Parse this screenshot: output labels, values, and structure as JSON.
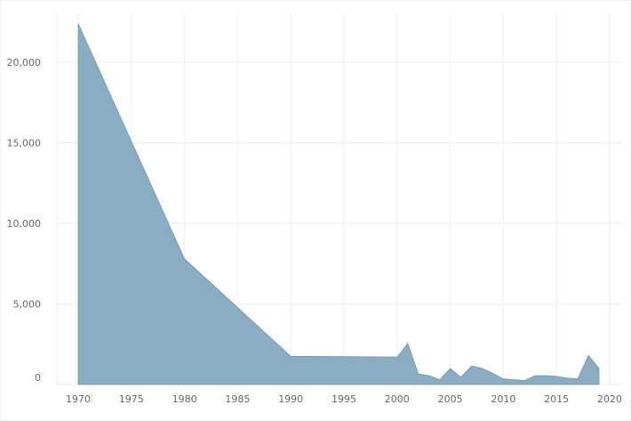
{
  "chart_data": {
    "type": "area",
    "title": "",
    "xlabel": "",
    "ylabel": "",
    "x": [
      1970,
      1980,
      1990,
      2000,
      2001,
      2002,
      2003,
      2004,
      2005,
      2006,
      2007,
      2008,
      2009,
      2010,
      2011,
      2012,
      2013,
      2014,
      2015,
      2016,
      2017,
      2018,
      2019
    ],
    "values": [
      22400,
      7800,
      1750,
      1700,
      2550,
      650,
      550,
      300,
      1000,
      450,
      1150,
      1000,
      700,
      350,
      300,
      250,
      550,
      550,
      500,
      400,
      350,
      1800,
      1000
    ],
    "xlim": [
      1968,
      2021
    ],
    "ylim": [
      0,
      22900
    ],
    "x_ticks": [
      1970,
      1975,
      1980,
      1985,
      1990,
      1995,
      2000,
      2005,
      2010,
      2015,
      2020
    ],
    "x_tick_labels": [
      "1970",
      "1975",
      "1980",
      "1985",
      "1990",
      "1995",
      "2000",
      "2005",
      "2010",
      "2015",
      "2020"
    ],
    "y_ticks": [
      0,
      5000,
      10000,
      15000,
      20000
    ],
    "y_tick_labels": [
      "0",
      "5,000",
      "10,000",
      "15,000",
      "20,000"
    ],
    "grid": true,
    "color": "#8aadc4",
    "stroke_color": "#6f97b1"
  }
}
